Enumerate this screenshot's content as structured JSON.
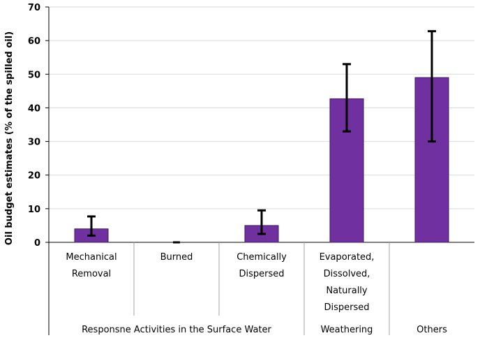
{
  "chart_data": {
    "type": "bar",
    "ylabel": "Oil budget estimates (% of the spilled oil)",
    "ylim": [
      0,
      70
    ],
    "yticks": [
      0,
      10,
      20,
      30,
      40,
      50,
      60,
      70
    ],
    "grid": true,
    "bar_color": "#7030a0",
    "categories": [
      [
        "Mechanical",
        "Removal"
      ],
      [
        "Burned"
      ],
      [
        "Chemically",
        "Dispersed"
      ],
      [
        "Evaporated,",
        "Dissolved,",
        "Naturally",
        "Dispersed"
      ],
      []
    ],
    "values": [
      4,
      0,
      5,
      42.7,
      49
    ],
    "error_low": [
      2,
      0,
      2.5,
      33,
      30
    ],
    "error_high": [
      7.7,
      0,
      9.5,
      53,
      62.8
    ],
    "groups": [
      {
        "label": "Responsne Activities in the Surface Water",
        "span": [
          0,
          2
        ]
      },
      {
        "label": "Weathering",
        "span": [
          3,
          3
        ]
      },
      {
        "label": "Others",
        "span": [
          4,
          4
        ]
      }
    ]
  }
}
